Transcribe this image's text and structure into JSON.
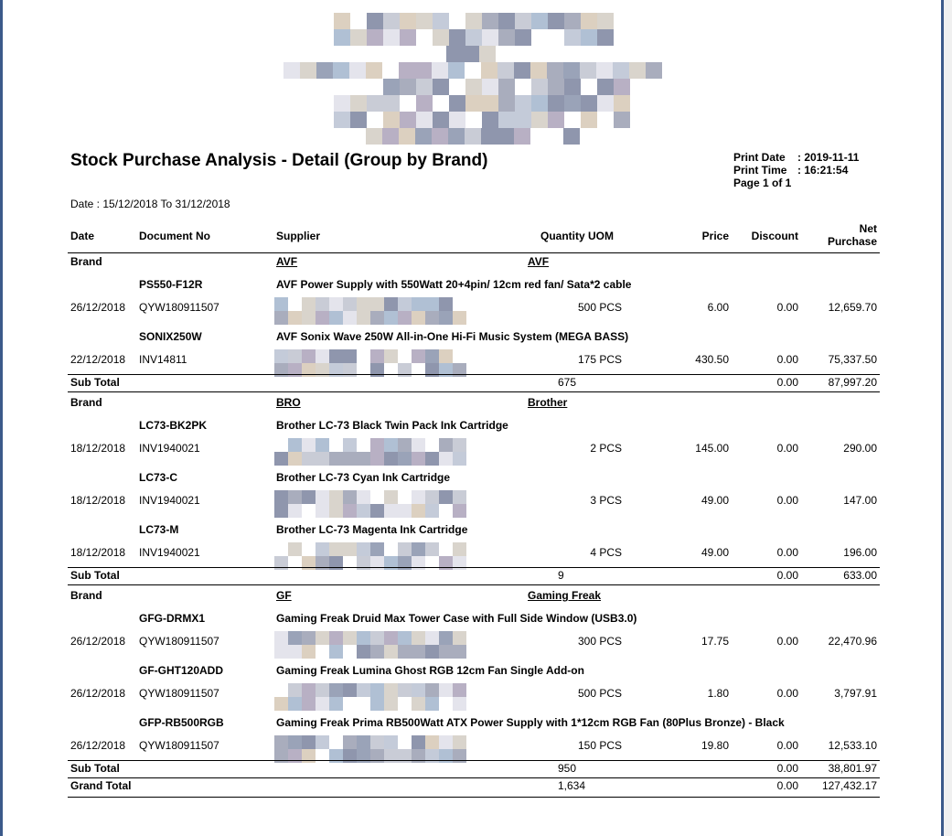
{
  "report": {
    "title": "Stock Purchase Analysis - Detail (Group by Brand)",
    "print_date_label": "Print Date",
    "print_date_value": ": 2019-11-11",
    "print_time_label": "Print Time",
    "print_time_value": ": 16:21:54",
    "page_text": "Page 1 of 1",
    "date_range": "Date : 15/12/2018 To 31/12/2018"
  },
  "columns": {
    "date": "Date",
    "document_no": "Document No",
    "supplier": "Supplier",
    "quantity_uom": "Quantity UOM",
    "price": "Price",
    "discount": "Discount",
    "net_1": "Net",
    "net_2": "Purchase"
  },
  "groups": [
    {
      "label": "Brand",
      "code": "AVF",
      "name": "AVF",
      "items": [
        {
          "code": "PS550-F12R",
          "desc": "AVF Power Supply with 550Watt 20+4pin/ 12cm red fan/ Sata*2 cable",
          "date": "26/12/2018",
          "doc": "QYW180911507",
          "qty": "500 PCS",
          "price": "6.00",
          "discount": "0.00",
          "net": "12,659.70"
        },
        {
          "code": "SONIX250W",
          "desc": "AVF Sonix Wave 250W All-in-One Hi-Fi Music System (MEGA BASS)",
          "date": "22/12/2018",
          "doc": "INV14811",
          "qty": "175 PCS",
          "price": "430.50",
          "discount": "0.00",
          "net": "75,337.50"
        }
      ],
      "subtotal": {
        "label": "Sub Total",
        "qty": "675",
        "discount": "0.00",
        "net": "87,997.20"
      }
    },
    {
      "label": "Brand",
      "code": "BRO",
      "name": "Brother",
      "items": [
        {
          "code": "LC73-BK2PK",
          "desc": "Brother LC-73 Black Twin Pack Ink Cartridge",
          "date": "18/12/2018",
          "doc": "INV1940021",
          "qty": "2 PCS",
          "price": "145.00",
          "discount": "0.00",
          "net": "290.00"
        },
        {
          "code": "LC73-C",
          "desc": "Brother LC-73 Cyan Ink Cartridge",
          "date": "18/12/2018",
          "doc": "INV1940021",
          "qty": "3 PCS",
          "price": "49.00",
          "discount": "0.00",
          "net": "147.00"
        },
        {
          "code": "LC73-M",
          "desc": "Brother LC-73 Magenta Ink Cartridge",
          "date": "18/12/2018",
          "doc": "INV1940021",
          "qty": "4 PCS",
          "price": "49.00",
          "discount": "0.00",
          "net": "196.00"
        }
      ],
      "subtotal": {
        "label": "Sub Total",
        "qty": "9",
        "discount": "0.00",
        "net": "633.00"
      }
    },
    {
      "label": "Brand",
      "code": "GF",
      "name": "Gaming Freak",
      "items": [
        {
          "code": "GFG-DRMX1",
          "desc": "Gaming Freak Druid Max Tower Case with Full Side Window (USB3.0)",
          "date": "26/12/2018",
          "doc": "QYW180911507",
          "qty": "300 PCS",
          "price": "17.75",
          "discount": "0.00",
          "net": "22,470.96"
        },
        {
          "code": "GF-GHT120ADD",
          "desc": "Gaming Freak Lumina Ghost RGB 12cm Fan Single Add-on",
          "date": "26/12/2018",
          "doc": "QYW180911507",
          "qty": "500 PCS",
          "price": "1.80",
          "discount": "0.00",
          "net": "3,797.91"
        },
        {
          "code": "GFP-RB500RGB",
          "desc": "Gaming Freak Prima RB500Watt ATX Power Supply with 1*12cm RGB Fan  (80Plus Bronze) - Black",
          "date": "26/12/2018",
          "doc": "QYW180911507",
          "qty": "150 PCS",
          "price": "19.80",
          "discount": "0.00",
          "net": "12,533.10"
        }
      ],
      "subtotal": {
        "label": "Sub Total",
        "qty": "950",
        "discount": "0.00",
        "net": "38,801.97"
      }
    }
  ],
  "grand_total": {
    "label": "Grand Total",
    "qty": "1,634",
    "discount": "0.00",
    "net": "127,432.17"
  },
  "colors": {
    "frame": "#3c5a8a",
    "mosaic_palette": [
      "#c9ccd6",
      "#a9adbd",
      "#d9d4cc",
      "#b8b0c4",
      "#8f96ad",
      "#dcd0c0",
      "#c4cbd9",
      "#e4e4ec",
      "#9aa3b8",
      "#b0c0d4"
    ]
  }
}
